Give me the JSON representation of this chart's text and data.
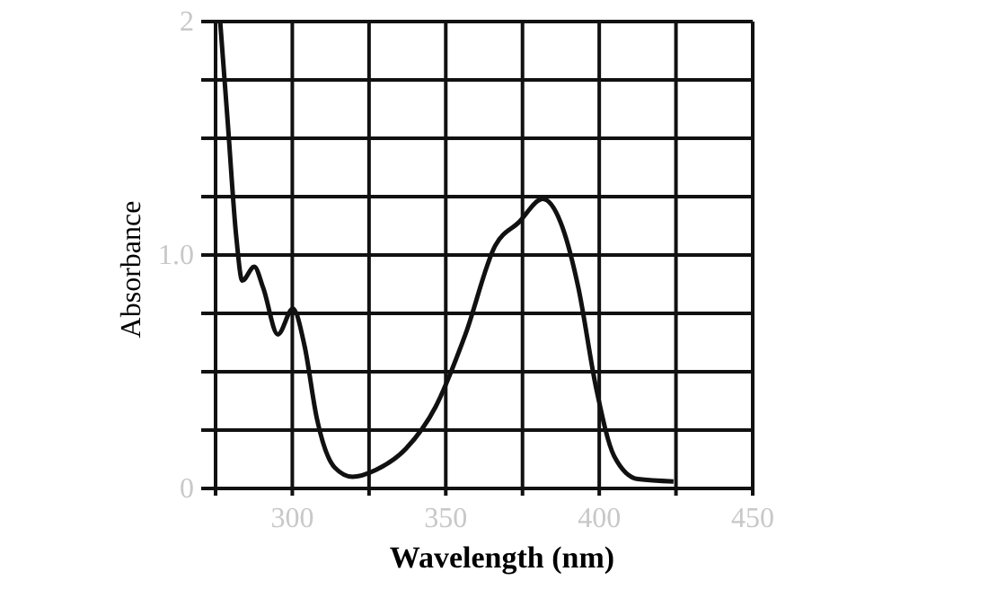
{
  "chart_data": {
    "type": "line",
    "xlabel": "Wavelength  (nm)",
    "ylabel": "Absorbance",
    "x": [
      276.5,
      278.9,
      281.8,
      283.7,
      287.6,
      290.5,
      295.3,
      300.2,
      304,
      308,
      313.8,
      319.6,
      327.3,
      337,
      346.7,
      356.4,
      366.1,
      373.8,
      381.6,
      387.4,
      393.2,
      399,
      404.8,
      412.6,
      424.2
    ],
    "series": [
      {
        "color": "#111111",
        "values": [
          2.0,
          1.58,
          1.07,
          0.89,
          0.95,
          0.86,
          0.66,
          0.77,
          0.61,
          0.3,
          0.09,
          0.05,
          0.08,
          0.17,
          0.35,
          0.66,
          1.04,
          1.14,
          1.24,
          1.14,
          0.86,
          0.43,
          0.14,
          0.04,
          0.03
        ]
      }
    ],
    "xlim": [
      275,
      450
    ],
    "ylim": [
      0,
      2
    ],
    "xticks": [
      {
        "value": 275,
        "label": null
      },
      300,
      {
        "value": 325,
        "label": null
      },
      350,
      {
        "value": 375,
        "label": null
      },
      400,
      {
        "value": 425,
        "label": null
      },
      450
    ],
    "yticks": [
      0,
      {
        "value": 0.25,
        "label": null
      },
      {
        "value": 0.5,
        "label": null
      },
      {
        "value": 0.75,
        "label": null
      },
      {
        "value": 1,
        "label": "1.0"
      },
      {
        "value": 1.25,
        "label": null
      },
      {
        "value": 1.5,
        "label": null
      },
      {
        "value": 1.75,
        "label": null
      },
      2
    ],
    "grid": true,
    "marker": "none",
    "line_style": "solid"
  }
}
